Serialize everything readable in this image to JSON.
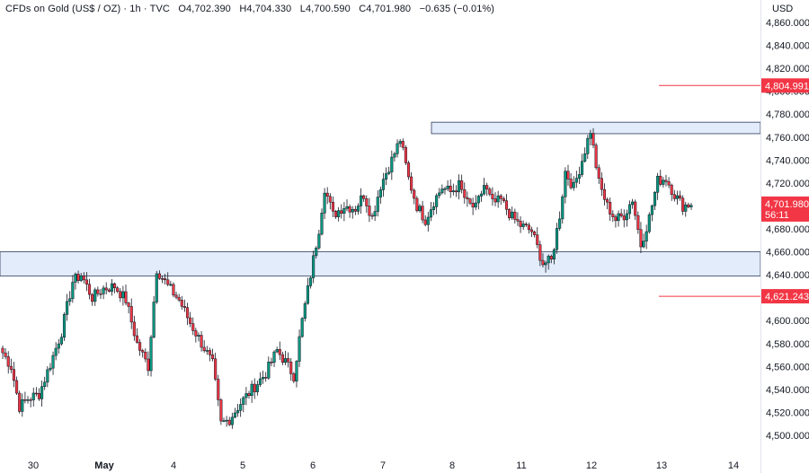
{
  "header": {
    "symbol": "CFDs on Gold (US$ / OZ)",
    "interval": "1h",
    "source": "TVC",
    "open": "O4,702.390",
    "high": "H4,704.330",
    "low": "L4,700.590",
    "close": "C4,701.980",
    "change": "−0.635 (−0.01%)"
  },
  "currency": "USD",
  "colors": {
    "up": "#089981",
    "down": "#f23645",
    "zone_fill": "#e3ecfb",
    "zone_border": "#2a3a5a",
    "level_line": "#f23645",
    "price_label": "#f23645",
    "axis_text": "#131722"
  },
  "chart_data": {
    "type": "candlestick",
    "title": "CFDs on Gold (US$ / OZ) · 1h · TVC",
    "ylim": [
      4490,
      4865
    ],
    "y_ticks": [
      "4,500.000",
      "4,520.000",
      "4,540.000",
      "4,560.000",
      "4,580.000",
      "4,600.000",
      "4,620.000",
      "4,640.000",
      "4,660.000",
      "4,680.000",
      "4,700.000",
      "4,720.000",
      "4,740.000",
      "4,760.000",
      "4,780.000",
      "4,800.000",
      "4,820.000",
      "4,840.000",
      "4,860.000"
    ],
    "x_ticks": [
      "30",
      "May",
      "4",
      "5",
      "6",
      "7",
      "8",
      "11",
      "12",
      "13",
      "14"
    ],
    "price_labels": [
      {
        "text": "4,804.991",
        "value": 4804.991
      },
      {
        "text": "4,621.243",
        "value": 4621.243
      }
    ],
    "last_price": {
      "text": "4,701.980",
      "countdown": "56:11",
      "value": 4701.98
    },
    "zones": [
      {
        "name": "resistance",
        "top": 4773,
        "bottom": 4763
      },
      {
        "name": "support",
        "top": 4660,
        "bottom": 4639
      }
    ],
    "level_lines": [
      4804.991,
      4621.243
    ],
    "waypoints": [
      [
        0,
        4572
      ],
      [
        3,
        4560
      ],
      [
        6,
        4525
      ],
      [
        9,
        4532
      ],
      [
        13,
        4536
      ],
      [
        17,
        4562
      ],
      [
        21,
        4590
      ],
      [
        25,
        4634
      ],
      [
        28,
        4640
      ],
      [
        32,
        4620
      ],
      [
        36,
        4628
      ],
      [
        40,
        4630
      ],
      [
        44,
        4618
      ],
      [
        48,
        4580
      ],
      [
        52,
        4560
      ],
      [
        55,
        4645
      ],
      [
        59,
        4630
      ],
      [
        63,
        4618
      ],
      [
        67,
        4598
      ],
      [
        72,
        4576
      ],
      [
        75,
        4562
      ],
      [
        78,
        4510
      ],
      [
        81,
        4514
      ],
      [
        85,
        4528
      ],
      [
        89,
        4540
      ],
      [
        94,
        4554
      ],
      [
        98,
        4574
      ],
      [
        101,
        4564
      ],
      [
        104,
        4552
      ],
      [
        107,
        4600
      ],
      [
        110,
        4640
      ],
      [
        113,
        4680
      ],
      [
        115,
        4716
      ],
      [
        118,
        4692
      ],
      [
        122,
        4700
      ],
      [
        126,
        4698
      ],
      [
        129,
        4710
      ],
      [
        132,
        4690
      ],
      [
        135,
        4718
      ],
      [
        139,
        4740
      ],
      [
        142,
        4758
      ],
      [
        145,
        4724
      ],
      [
        148,
        4700
      ],
      [
        151,
        4688
      ],
      [
        154,
        4704
      ],
      [
        157,
        4716
      ],
      [
        160,
        4712
      ],
      [
        163,
        4718
      ],
      [
        166,
        4702
      ],
      [
        169,
        4698
      ],
      [
        172,
        4718
      ],
      [
        175,
        4702
      ],
      [
        178,
        4705
      ],
      [
        182,
        4690
      ],
      [
        185,
        4683
      ],
      [
        189,
        4678
      ],
      [
        193,
        4650
      ],
      [
        196,
        4652
      ],
      [
        199,
        4692
      ],
      [
        201,
        4730
      ],
      [
        204,
        4716
      ],
      [
        207,
        4740
      ],
      [
        210,
        4766
      ],
      [
        213,
        4720
      ],
      [
        216,
        4700
      ],
      [
        219,
        4688
      ],
      [
        222,
        4692
      ],
      [
        225,
        4706
      ],
      [
        228,
        4666
      ],
      [
        231,
        4690
      ],
      [
        234,
        4722
      ],
      [
        237,
        4724
      ],
      [
        240,
        4710
      ],
      [
        243,
        4700
      ],
      [
        246,
        4702
      ]
    ]
  }
}
